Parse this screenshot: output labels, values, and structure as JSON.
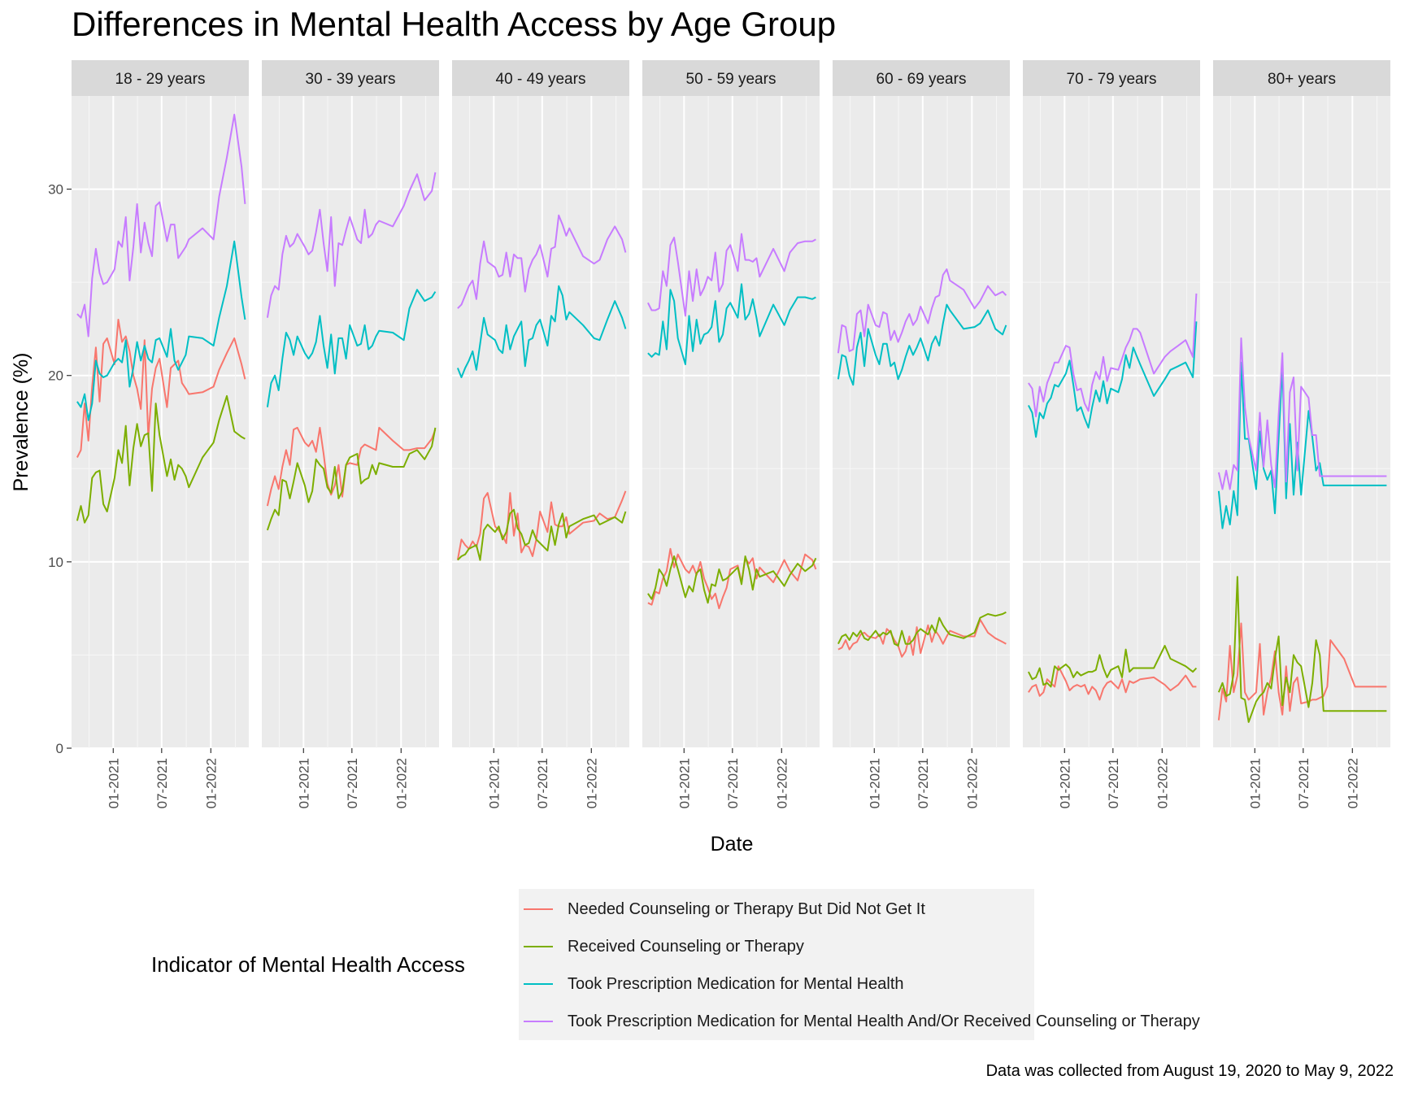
{
  "chart_data": {
    "type": "line",
    "title": "Differences in Mental Health Access by Age Group",
    "xlabel": "Date",
    "ylabel": "Prevalence (%)",
    "ylim": [
      0,
      35
    ],
    "y_ticks": [
      0,
      10,
      20,
      30
    ],
    "x_ticks": [
      "01-2021",
      "07-2021",
      "01-2022"
    ],
    "x_tick_dates": [
      "2021-01-01",
      "2021-07-01",
      "2022-01-01"
    ],
    "xlim": [
      "2020-07-29",
      "2022-05-23"
    ],
    "legend_title": "Indicator of Mental Health Access",
    "legend_position": "bottom",
    "caption": "Data was collected from August 19, 2020 to May 9, 2022",
    "grid": true,
    "series": [
      {
        "key": "needed",
        "name": "Needed Counseling or Therapy But Did Not Get It",
        "color": "#F8766D"
      },
      {
        "key": "received",
        "name": "Received Counseling or Therapy",
        "color": "#7CAE00"
      },
      {
        "key": "prescription",
        "name": "Took Prescription Medication for Mental Health",
        "color": "#00BFC4"
      },
      {
        "key": "either",
        "name": "Took Prescription Medication for Mental Health And/Or Received Counseling or Therapy",
        "color": "#C77CFF"
      }
    ],
    "dates": [
      "2020-08-19",
      "2020-09-02",
      "2020-09-16",
      "2020-09-30",
      "2020-10-14",
      "2020-10-28",
      "2020-11-11",
      "2020-11-25",
      "2020-12-09",
      "2021-01-06",
      "2021-01-20",
      "2021-02-03",
      "2021-02-17",
      "2021-03-03",
      "2021-03-17",
      "2021-03-31",
      "2021-04-14",
      "2021-04-28",
      "2021-05-12",
      "2021-05-26",
      "2021-06-09",
      "2021-06-23",
      "2021-07-21",
      "2021-08-04",
      "2021-08-18",
      "2021-09-01",
      "2021-09-15",
      "2021-09-29",
      "2021-10-11",
      "2021-12-01",
      "2022-01-11",
      "2022-02-01",
      "2022-03-02",
      "2022-03-30",
      "2022-04-26",
      "2022-05-09"
    ],
    "panels": [
      {
        "label": "18 - 29 years",
        "needed": [
          15.6,
          16.0,
          18.5,
          16.5,
          19.4,
          21.5,
          18.6,
          21.7,
          22.0,
          20.6,
          23.0,
          21.8,
          22.1,
          21.3,
          20.0,
          19.3,
          18.2,
          21.9,
          16.7,
          19.3,
          20.4,
          20.9,
          18.3,
          20.4,
          20.6,
          20.8,
          19.6,
          19.3,
          19.0,
          19.1,
          19.4,
          20.3,
          21.2,
          22.0,
          20.6,
          19.8
        ],
        "received": [
          12.2,
          13.0,
          12.1,
          12.5,
          14.5,
          14.8,
          14.9,
          13.1,
          12.7,
          14.5,
          16.0,
          15.3,
          17.3,
          14.1,
          16.1,
          17.4,
          16.2,
          16.8,
          16.9,
          13.8,
          18.5,
          16.8,
          14.6,
          15.5,
          14.4,
          15.2,
          15.0,
          14.6,
          14.0,
          15.6,
          16.4,
          17.6,
          18.9,
          17.0,
          16.7,
          16.6
        ],
        "prescription": [
          18.6,
          18.3,
          19.0,
          17.6,
          18.5,
          20.8,
          20.1,
          19.9,
          20.0,
          20.7,
          20.9,
          20.7,
          21.9,
          19.4,
          20.4,
          21.8,
          20.8,
          21.6,
          20.9,
          20.7,
          21.9,
          22.0,
          21.0,
          22.5,
          20.8,
          20.3,
          20.7,
          21.1,
          22.1,
          22.0,
          21.6,
          23.1,
          24.8,
          27.2,
          24.2,
          23.0
        ],
        "either": [
          23.3,
          23.1,
          23.8,
          22.1,
          25.2,
          26.8,
          25.5,
          24.9,
          25.0,
          25.7,
          27.2,
          26.9,
          28.5,
          25.1,
          26.9,
          29.2,
          26.6,
          28.2,
          27.1,
          26.4,
          29.1,
          29.3,
          27.2,
          28.1,
          28.1,
          26.3,
          26.6,
          26.9,
          27.3,
          27.9,
          27.3,
          29.6,
          31.7,
          34.0,
          31.2,
          29.2
        ]
      },
      {
        "label": "30 - 39 years",
        "needed": [
          13.0,
          13.9,
          14.6,
          13.9,
          15.1,
          16.0,
          15.2,
          17.1,
          17.2,
          16.4,
          16.2,
          16.5,
          15.9,
          17.2,
          15.8,
          14.2,
          13.6,
          14.1,
          15.2,
          13.5,
          15.2,
          15.3,
          15.2,
          16.1,
          16.3,
          16.2,
          16.1,
          16.0,
          17.2,
          16.5,
          16.0,
          16.0,
          16.1,
          16.1,
          16.6,
          17.1
        ],
        "received": [
          11.7,
          12.3,
          12.8,
          12.5,
          14.4,
          14.3,
          13.4,
          14.3,
          15.3,
          14.1,
          13.2,
          13.8,
          15.5,
          15.2,
          15.0,
          14.0,
          13.7,
          15.1,
          13.4,
          13.8,
          15.2,
          15.6,
          15.8,
          14.2,
          14.4,
          14.5,
          15.2,
          14.7,
          15.3,
          15.1,
          15.1,
          15.8,
          16.0,
          15.5,
          16.2,
          17.2
        ],
        "prescription": [
          18.3,
          19.6,
          20.0,
          19.2,
          20.9,
          22.3,
          21.9,
          21.1,
          22.1,
          21.2,
          20.9,
          21.2,
          21.8,
          23.2,
          21.6,
          20.4,
          22.2,
          20.1,
          22.0,
          22.0,
          20.9,
          22.7,
          21.6,
          21.7,
          22.7,
          21.4,
          21.6,
          22.1,
          22.4,
          22.3,
          21.9,
          23.6,
          24.6,
          24.0,
          24.2,
          24.5
        ],
        "either": [
          23.1,
          24.3,
          24.8,
          24.6,
          26.5,
          27.5,
          26.9,
          27.1,
          27.6,
          26.9,
          26.5,
          26.7,
          27.7,
          28.9,
          27.1,
          25.6,
          28.5,
          24.8,
          27.1,
          27.0,
          27.8,
          28.5,
          27.3,
          27.1,
          28.9,
          27.4,
          27.6,
          28.1,
          28.3,
          28.0,
          29.1,
          29.9,
          30.8,
          29.4,
          29.9,
          30.9
        ]
      },
      {
        "label": "40 - 49 years",
        "needed": [
          10.1,
          11.2,
          10.9,
          10.7,
          11.1,
          10.8,
          11.5,
          13.4,
          13.7,
          11.9,
          11.7,
          11.4,
          11.0,
          13.7,
          11.4,
          12.6,
          10.5,
          10.9,
          10.8,
          10.3,
          11.2,
          12.7,
          11.6,
          13.2,
          12.0,
          11.9,
          11.9,
          12.4,
          11.5,
          12.1,
          12.2,
          12.6,
          12.3,
          12.4,
          13.3,
          13.8
        ],
        "received": [
          10.1,
          10.3,
          10.4,
          10.7,
          10.8,
          10.9,
          10.1,
          11.7,
          12.0,
          11.6,
          11.9,
          11.2,
          11.6,
          12.6,
          12.8,
          11.8,
          11.5,
          10.9,
          11.0,
          11.7,
          11.2,
          11.0,
          10.6,
          11.9,
          10.9,
          12.0,
          12.6,
          11.3,
          11.9,
          12.3,
          12.5,
          12.0,
          12.2,
          12.4,
          12.1,
          12.7
        ],
        "prescription": [
          20.4,
          19.9,
          20.4,
          20.8,
          21.3,
          20.3,
          21.7,
          23.1,
          22.2,
          21.9,
          21.4,
          21.2,
          22.7,
          21.4,
          22.1,
          22.5,
          22.9,
          20.5,
          21.9,
          22.0,
          22.7,
          23.0,
          21.6,
          23.2,
          22.9,
          24.8,
          24.3,
          23.0,
          23.4,
          22.7,
          22.0,
          21.9,
          23.0,
          24.0,
          23.1,
          22.5
        ],
        "either": [
          23.6,
          23.8,
          24.3,
          24.8,
          25.1,
          24.1,
          26.0,
          27.2,
          26.1,
          25.8,
          25.3,
          25.4,
          26.6,
          25.3,
          26.5,
          26.3,
          26.3,
          24.5,
          25.7,
          26.2,
          26.5,
          27.0,
          25.3,
          26.8,
          26.9,
          28.6,
          28.1,
          27.5,
          27.9,
          26.4,
          26.0,
          26.2,
          27.3,
          28.0,
          27.3,
          26.6
        ]
      },
      {
        "label": "50 - 59 years",
        "needed": [
          7.8,
          7.7,
          8.4,
          8.3,
          9.1,
          9.5,
          10.7,
          9.7,
          10.4,
          9.6,
          9.4,
          9.8,
          9.3,
          10.0,
          9.1,
          8.6,
          8.0,
          8.3,
          7.5,
          8.1,
          8.6,
          9.6,
          9.8,
          8.9,
          10.2,
          9.9,
          10.2,
          9.1,
          9.7,
          8.9,
          10.1,
          9.5,
          9.0,
          10.4,
          10.1,
          9.6
        ],
        "received": [
          8.3,
          8.0,
          8.6,
          9.6,
          9.3,
          8.7,
          9.6,
          10.3,
          9.6,
          8.1,
          8.7,
          8.4,
          9.4,
          9.6,
          8.5,
          7.8,
          8.8,
          8.7,
          9.6,
          9.0,
          9.1,
          9.3,
          9.7,
          8.8,
          10.3,
          9.6,
          8.5,
          9.6,
          9.2,
          9.5,
          8.7,
          9.3,
          9.9,
          9.5,
          9.8,
          10.2
        ],
        "prescription": [
          21.2,
          21.0,
          21.2,
          21.1,
          22.9,
          21.4,
          24.6,
          24.0,
          22.0,
          20.6,
          23.2,
          21.3,
          23.0,
          21.7,
          22.2,
          22.3,
          22.6,
          24.0,
          21.8,
          22.2,
          23.6,
          23.9,
          23.1,
          24.9,
          23.0,
          23.3,
          24.1,
          23.1,
          22.1,
          23.8,
          22.7,
          23.5,
          24.2,
          24.2,
          24.1,
          24.2
        ],
        "either": [
          23.9,
          23.5,
          23.5,
          23.6,
          25.6,
          24.8,
          27.0,
          27.4,
          26.1,
          23.2,
          25.6,
          24.0,
          25.7,
          24.3,
          24.7,
          25.3,
          25.1,
          26.6,
          24.5,
          24.9,
          26.7,
          27.0,
          25.6,
          27.6,
          26.2,
          26.2,
          26.1,
          26.3,
          25.3,
          26.8,
          25.6,
          26.6,
          27.1,
          27.2,
          27.2,
          27.3
        ]
      },
      {
        "label": "60 - 69 years",
        "needed": [
          5.3,
          5.4,
          5.8,
          5.3,
          5.6,
          5.7,
          6.1,
          6.2,
          6.0,
          5.9,
          6.1,
          5.6,
          6.4,
          6.2,
          5.8,
          5.5,
          4.9,
          5.2,
          6.0,
          5.0,
          6.5,
          5.1,
          6.6,
          5.7,
          6.3,
          6.0,
          5.6,
          6.0,
          6.3,
          6.0,
          6.0,
          6.9,
          6.2,
          5.9,
          5.7,
          5.6
        ],
        "received": [
          5.6,
          6.0,
          6.1,
          5.8,
          6.2,
          6.0,
          6.3,
          5.9,
          5.8,
          6.3,
          6.0,
          6.2,
          6.1,
          6.3,
          5.6,
          5.5,
          6.3,
          5.6,
          5.6,
          5.8,
          6.2,
          6.4,
          6.1,
          6.6,
          6.2,
          7.0,
          6.6,
          6.3,
          6.1,
          5.9,
          6.2,
          7.0,
          7.2,
          7.1,
          7.2,
          7.3
        ],
        "prescription": [
          19.8,
          21.1,
          21.0,
          20.0,
          19.5,
          21.5,
          22.3,
          20.5,
          22.5,
          21.1,
          20.6,
          21.7,
          21.7,
          20.5,
          20.7,
          19.8,
          20.3,
          21.0,
          21.6,
          21.1,
          21.5,
          22.0,
          20.8,
          21.7,
          22.1,
          21.6,
          22.8,
          23.8,
          23.5,
          22.5,
          22.6,
          22.8,
          23.5,
          22.5,
          22.2,
          22.7
        ],
        "either": [
          21.2,
          22.7,
          22.6,
          21.3,
          21.4,
          23.3,
          23.5,
          22.1,
          23.8,
          22.7,
          22.6,
          23.4,
          23.3,
          21.9,
          22.4,
          21.8,
          22.3,
          22.9,
          23.3,
          22.7,
          23.0,
          23.7,
          22.8,
          23.6,
          24.2,
          24.3,
          25.4,
          25.7,
          25.1,
          24.6,
          23.6,
          24.0,
          24.8,
          24.3,
          24.5,
          24.3
        ]
      },
      {
        "label": "70 - 79 years",
        "needed": [
          3.0,
          3.3,
          3.4,
          2.8,
          3.0,
          3.7,
          3.5,
          3.3,
          4.4,
          3.6,
          3.1,
          3.3,
          3.4,
          3.3,
          3.4,
          2.9,
          3.3,
          3.1,
          2.6,
          3.2,
          3.5,
          3.6,
          3.2,
          3.7,
          3.0,
          3.6,
          3.5,
          3.6,
          3.7,
          3.8,
          3.4,
          3.1,
          3.4,
          3.9,
          3.3,
          3.3
        ],
        "received": [
          4.1,
          3.7,
          3.8,
          4.3,
          3.4,
          3.5,
          3.3,
          4.4,
          4.2,
          4.5,
          4.3,
          3.8,
          4.1,
          3.9,
          4.0,
          4.1,
          4.1,
          4.2,
          5.0,
          4.3,
          3.8,
          4.2,
          4.4,
          3.8,
          5.3,
          4.1,
          4.3,
          4.3,
          4.3,
          4.3,
          5.5,
          4.8,
          4.6,
          4.4,
          4.1,
          4.3
        ],
        "prescription": [
          18.4,
          18.0,
          16.7,
          18.0,
          17.7,
          18.5,
          18.8,
          19.5,
          19.4,
          20.1,
          20.8,
          19.5,
          18.1,
          18.3,
          17.7,
          17.2,
          18.3,
          19.2,
          18.6,
          19.7,
          18.5,
          19.3,
          19.1,
          19.8,
          21.1,
          20.4,
          21.5,
          21.0,
          20.6,
          18.9,
          19.8,
          20.3,
          20.5,
          20.7,
          19.9,
          22.9
        ],
        "either": [
          19.6,
          19.3,
          17.8,
          19.4,
          18.6,
          19.6,
          20.1,
          20.7,
          20.7,
          21.6,
          21.5,
          20.1,
          19.2,
          19.3,
          18.5,
          18.1,
          19.5,
          20.2,
          19.8,
          21.0,
          19.7,
          20.4,
          20.3,
          20.9,
          21.5,
          21.9,
          22.5,
          22.5,
          22.3,
          20.1,
          21.0,
          21.3,
          21.6,
          21.9,
          21.0,
          24.4
        ]
      },
      {
        "label": "80+ years",
        "needed": [
          1.5,
          3.2,
          2.5,
          5.5,
          3.0,
          3.9,
          6.7,
          3.0,
          2.6,
          3.0,
          5.6,
          1.8,
          3.0,
          3.8,
          5.2,
          3.0,
          1.8,
          4.4,
          2.0,
          3.5,
          3.8,
          2.4,
          2.5,
          2.6,
          2.6,
          2.7,
          2.8,
          3.3,
          5.8,
          4.8,
          3.3,
          3.3,
          3.3,
          3.3,
          3.3,
          3.3
        ],
        "received": [
          3.0,
          3.5,
          2.8,
          2.9,
          4.0,
          9.2,
          2.7,
          2.6,
          1.4,
          2.5,
          2.8,
          3.0,
          3.5,
          3.2,
          4.8,
          6.0,
          2.3,
          3.8,
          3.0,
          5.0,
          4.6,
          4.4,
          2.2,
          3.5,
          5.8,
          5.0,
          2.0,
          2.0,
          2.0,
          2.0,
          2.0,
          2.0,
          2.0,
          2.0,
          2.0,
          2.0
        ],
        "prescription": [
          13.8,
          11.8,
          13.0,
          12.0,
          13.8,
          12.5,
          20.7,
          16.6,
          16.6,
          13.9,
          17.0,
          15.0,
          14.4,
          14.9,
          12.6,
          16.6,
          20.5,
          13.4,
          17.4,
          13.6,
          16.4,
          13.6,
          18.1,
          16.7,
          14.9,
          15.3,
          14.1,
          14.1,
          14.1,
          14.1,
          14.1,
          14.1,
          14.1,
          14.1,
          14.1,
          14.1
        ],
        "either": [
          14.8,
          13.9,
          14.9,
          13.9,
          15.2,
          14.9,
          22.0,
          18.3,
          16.7,
          14.9,
          18.0,
          15.1,
          17.6,
          15.2,
          14.0,
          17.9,
          21.2,
          14.3,
          19.1,
          19.9,
          14.9,
          19.4,
          18.8,
          16.8,
          16.8,
          14.6,
          14.6,
          14.6,
          14.6,
          14.6,
          14.6,
          14.6,
          14.6,
          14.6,
          14.6,
          14.6
        ]
      }
    ]
  }
}
